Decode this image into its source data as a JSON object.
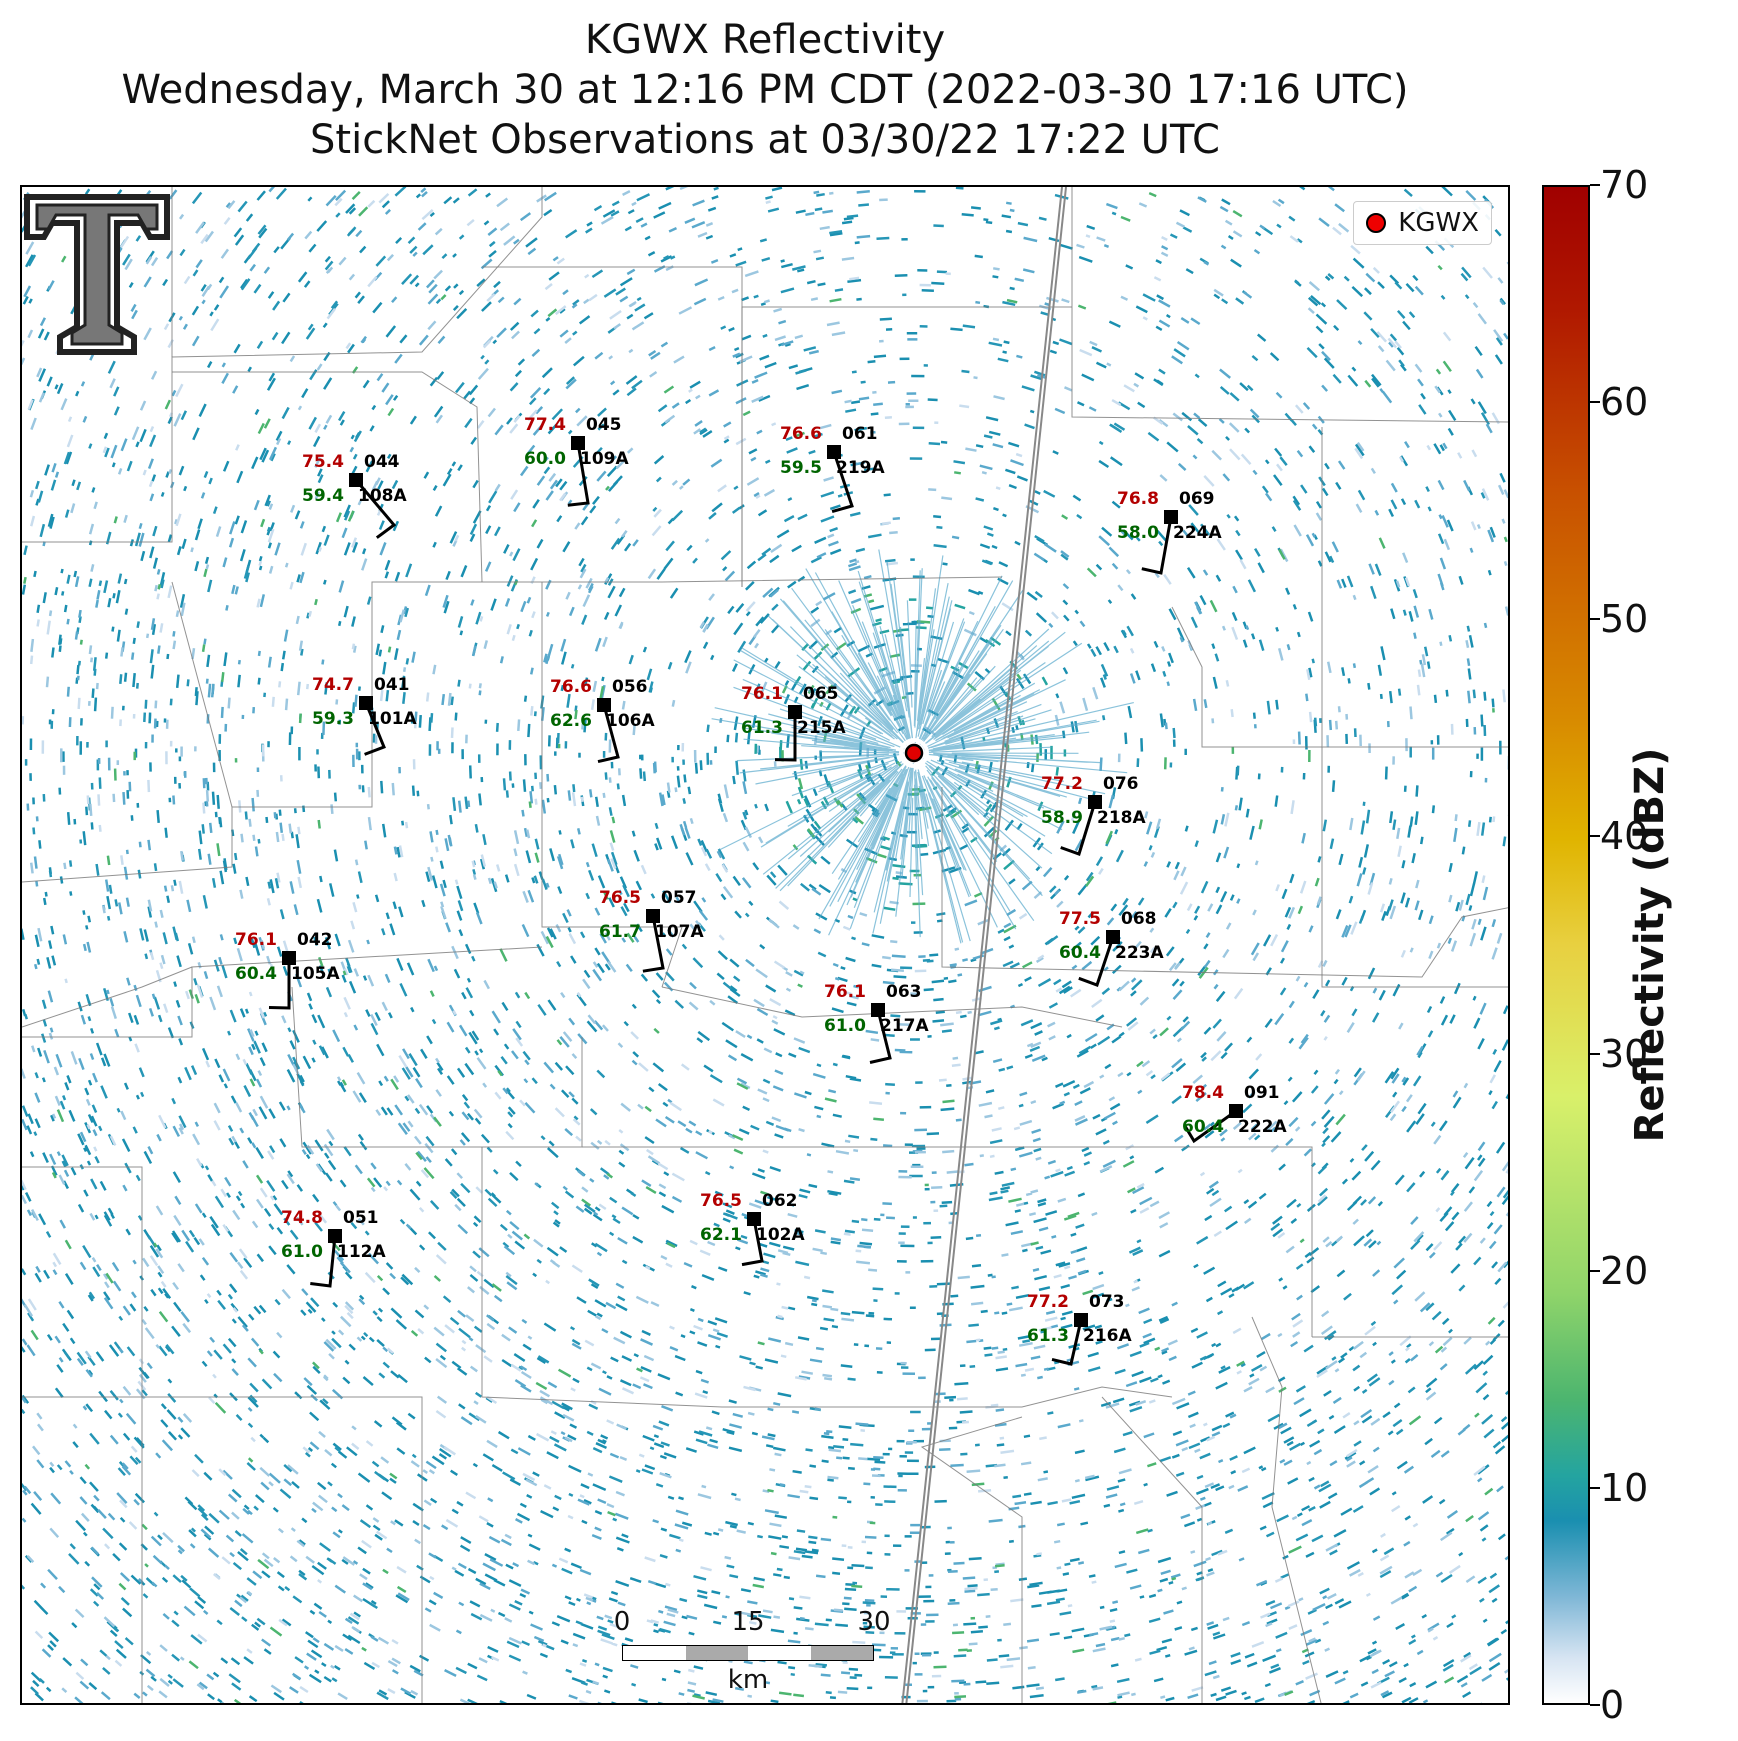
{
  "title": {
    "line1": "KGWX Reflectivity",
    "line2": "Wednesday, March 30 at 12:16 PM CDT (2022-03-30 17:16 UTC)",
    "line3": "StickNet Observations at 03/30/22 17:22 UTC"
  },
  "legend": {
    "label": "KGWX"
  },
  "colorbar": {
    "label": "Reflectivity (dBZ)",
    "ticks": [
      "0",
      "10",
      "20",
      "30",
      "40",
      "50",
      "60",
      "70"
    ],
    "range": [
      0,
      70
    ]
  },
  "scalebar": {
    "ticks": [
      "0",
      "15",
      "30"
    ],
    "unit": "km"
  },
  "colors": {
    "temp": "#b30000",
    "dewpoint": "#006400",
    "radar": "#e00000"
  },
  "stations": [
    {
      "temp": "77.4",
      "dew": "60.0",
      "num": "045",
      "id": "109A"
    },
    {
      "temp": "76.6",
      "dew": "59.5",
      "num": "061",
      "id": "219A"
    },
    {
      "temp": "75.4",
      "dew": "59.4",
      "num": "044",
      "id": "108A"
    },
    {
      "temp": "76.8",
      "dew": "58.0",
      "num": "069",
      "id": "224A"
    },
    {
      "temp": "74.7",
      "dew": "59.3",
      "num": "041",
      "id": "101A"
    },
    {
      "temp": "76.6",
      "dew": "62.6",
      "num": "056",
      "id": "106A"
    },
    {
      "temp": "76.1",
      "dew": "61.3",
      "num": "065",
      "id": "215A"
    },
    {
      "temp": "77.2",
      "dew": "58.9",
      "num": "076",
      "id": "218A"
    },
    {
      "temp": "76.5",
      "dew": "61.7",
      "num": "057",
      "id": "107A"
    },
    {
      "temp": "77.5",
      "dew": "60.4",
      "num": "068",
      "id": "223A"
    },
    {
      "temp": "76.1",
      "dew": "60.4",
      "num": "042",
      "id": "105A"
    },
    {
      "temp": "76.1",
      "dew": "61.0",
      "num": "063",
      "id": "217A"
    },
    {
      "temp": "78.4",
      "dew": "60.4",
      "num": "091",
      "id": "222A"
    },
    {
      "temp": "76.5",
      "dew": "62.1",
      "num": "062",
      "id": "102A"
    },
    {
      "temp": "74.8",
      "dew": "61.0",
      "num": "051",
      "id": "112A"
    },
    {
      "temp": "77.2",
      "dew": "61.3",
      "num": "073",
      "id": "216A"
    }
  ]
}
